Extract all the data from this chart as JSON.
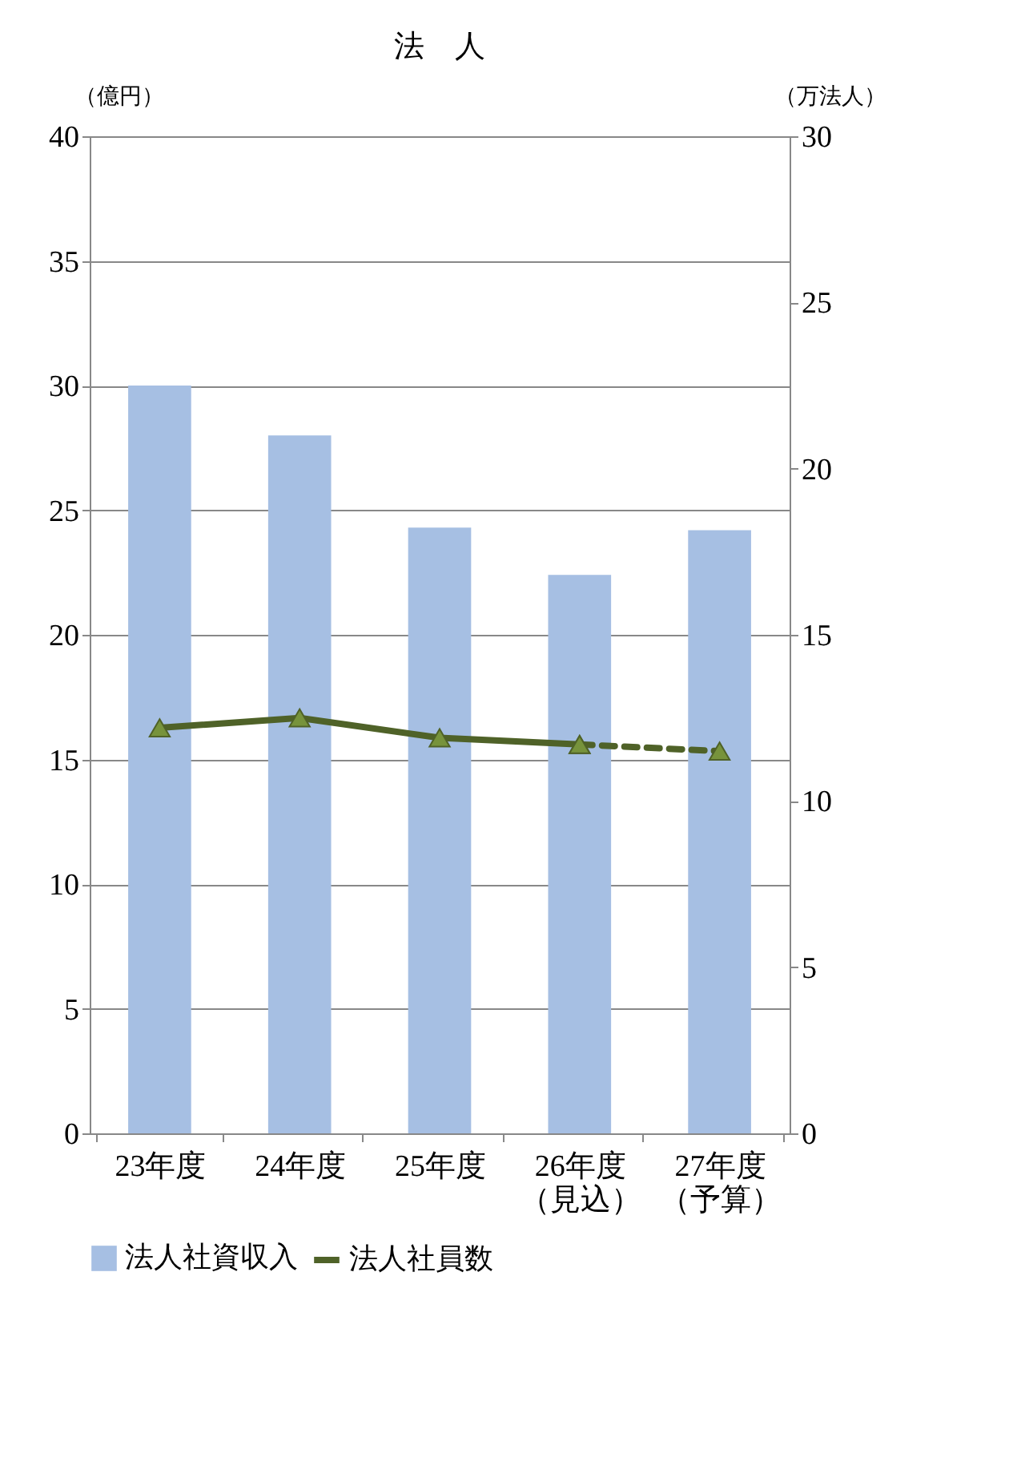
{
  "chart_data": {
    "type": "bar",
    "title": "法　人",
    "ylabel": "（億円）",
    "y2label": "（万法人）",
    "categories": [
      "23年度",
      "24年度",
      "25年度",
      "26年度（見込）",
      "27年度（予算）"
    ],
    "series": [
      {
        "name": "法人社資収入",
        "color": "#a6bfe3",
        "values": [
          30,
          28,
          24.3,
          22.4,
          24.2
        ]
      },
      {
        "name": "法人社員数",
        "type": "line",
        "axis": "y2",
        "color": "#4f6228",
        "marker": "triangle",
        "line_style": "solid",
        "values": [
          12.2,
          12.5,
          11.9,
          11.7,
          null
        ]
      },
      {
        "type": "line",
        "axis": "y2",
        "color": "#4f6228",
        "marker": "triangle",
        "line_style": "dashed",
        "values": [
          null,
          null,
          null,
          11.7,
          11.5
        ]
      }
    ],
    "ylim": [
      0,
      40
    ],
    "yticks": [
      0,
      5,
      10,
      15,
      20,
      25,
      30,
      35,
      40
    ],
    "y2lim": [
      0,
      30
    ],
    "y2ticks": [
      0,
      5,
      10,
      15,
      20,
      25,
      30
    ],
    "grid": "y",
    "legend": "bottom"
  }
}
